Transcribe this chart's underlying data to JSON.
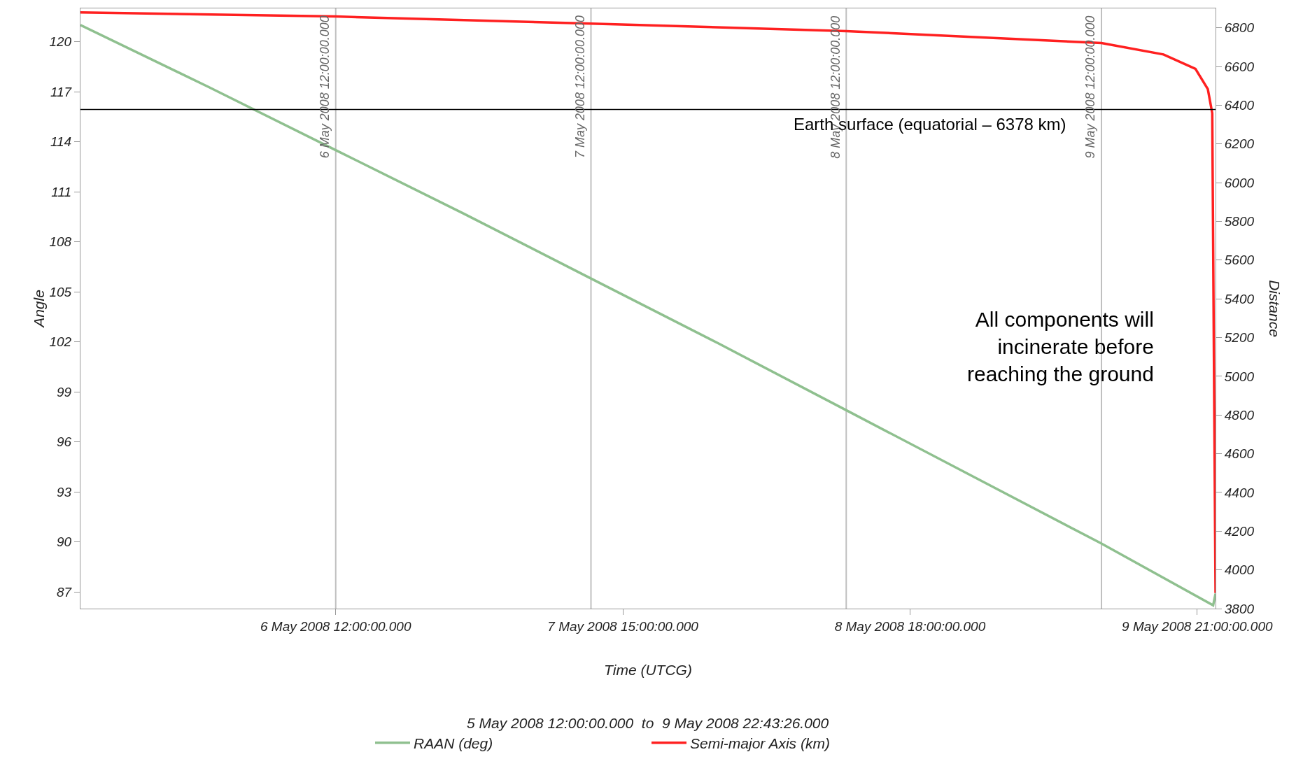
{
  "chart_data": {
    "type": "line",
    "xlabel": "Time (UTCG)",
    "ylabel": "Angle",
    "y2label": "Distance",
    "annotations": [
      "5 May 2008 12:00:00.000  to  9 May 2008 22:43:26.000",
      "All components will incinerate before reaching the ground"
    ],
    "xlim": [
      "2008-05-05T12:00",
      "2008-05-09T22:43:26"
    ],
    "xticks": [
      {
        "value": "2008-05-06T12:00",
        "label": "6 May 2008 12:00:00.000"
      },
      {
        "value": "2008-05-07T15:00",
        "label": "7 May 2008 15:00:00.000"
      },
      {
        "value": "2008-05-08T18:00",
        "label": "8 May 2008 18:00:00.000"
      },
      {
        "value": "2008-05-09T21:00",
        "label": "9 May 2008 21:00:00.000"
      }
    ],
    "ylim": [
      86,
      122
    ],
    "yticks": [
      87,
      90,
      93,
      96,
      99,
      102,
      105,
      108,
      111,
      114,
      117,
      120
    ],
    "y2lim": [
      3800,
      6900
    ],
    "y2ticks": [
      3800,
      4000,
      4200,
      4400,
      4600,
      4800,
      5000,
      5200,
      5400,
      5600,
      5800,
      6000,
      6200,
      6400,
      6600,
      6800
    ],
    "grid": false,
    "legend": "bottom",
    "marker": "none",
    "line_style": "solid",
    "ref_lines": [
      {
        "axis": "x",
        "value": "2008-05-06T12:00",
        "label": "6 May 2008 12:00:00.000",
        "color": "#c0c0c0"
      },
      {
        "axis": "x",
        "value": "2008-05-07T12:00",
        "label": "7 May 2008 12:00:00.000",
        "color": "#c0c0c0"
      },
      {
        "axis": "x",
        "value": "2008-05-08T12:00",
        "label": "8 May 2008 12:00:00.000",
        "color": "#c0c0c0"
      },
      {
        "axis": "x",
        "value": "2008-05-09T12:00",
        "label": "9 May 2008 12:00:00.000",
        "color": "#c0c0c0"
      },
      {
        "axis": "y2",
        "value": 6378,
        "label": "Earth surface (equatorial – 6378 km)",
        "color": "#000000"
      }
    ],
    "series": [
      {
        "name": "RAAN (deg)",
        "color": "#8fc08f",
        "axis": "y",
        "x": [
          "2008-05-05T12:00",
          "2008-05-06T00:00",
          "2008-05-06T12:00",
          "2008-05-07T00:00",
          "2008-05-07T12:00",
          "2008-05-08T00:00",
          "2008-05-08T12:00",
          "2008-05-09T00:00",
          "2008-05-09T12:00",
          "2008-05-09T22:30",
          "2008-05-09T22:43:26"
        ],
        "values": [
          121.0,
          117.3,
          113.5,
          109.7,
          105.8,
          101.9,
          97.9,
          93.9,
          89.9,
          86.2,
          86.9
        ]
      },
      {
        "name": "Semi-major Axis (km)",
        "color": "#ff2020",
        "axis": "y2",
        "x": [
          "2008-05-05T12:00",
          "2008-05-06T12:00",
          "2008-05-07T12:00",
          "2008-05-08T12:00",
          "2008-05-09T12:00",
          "2008-05-09T17:50",
          "2008-05-09T20:50",
          "2008-05-09T22:00",
          "2008-05-09T22:25",
          "2008-05-09T22:35",
          "2008-05-09T22:43:26"
        ],
        "values": [
          6879,
          6858,
          6821,
          6783,
          6721,
          6662,
          6588,
          6483,
          6358,
          5000,
          3880
        ]
      }
    ]
  }
}
